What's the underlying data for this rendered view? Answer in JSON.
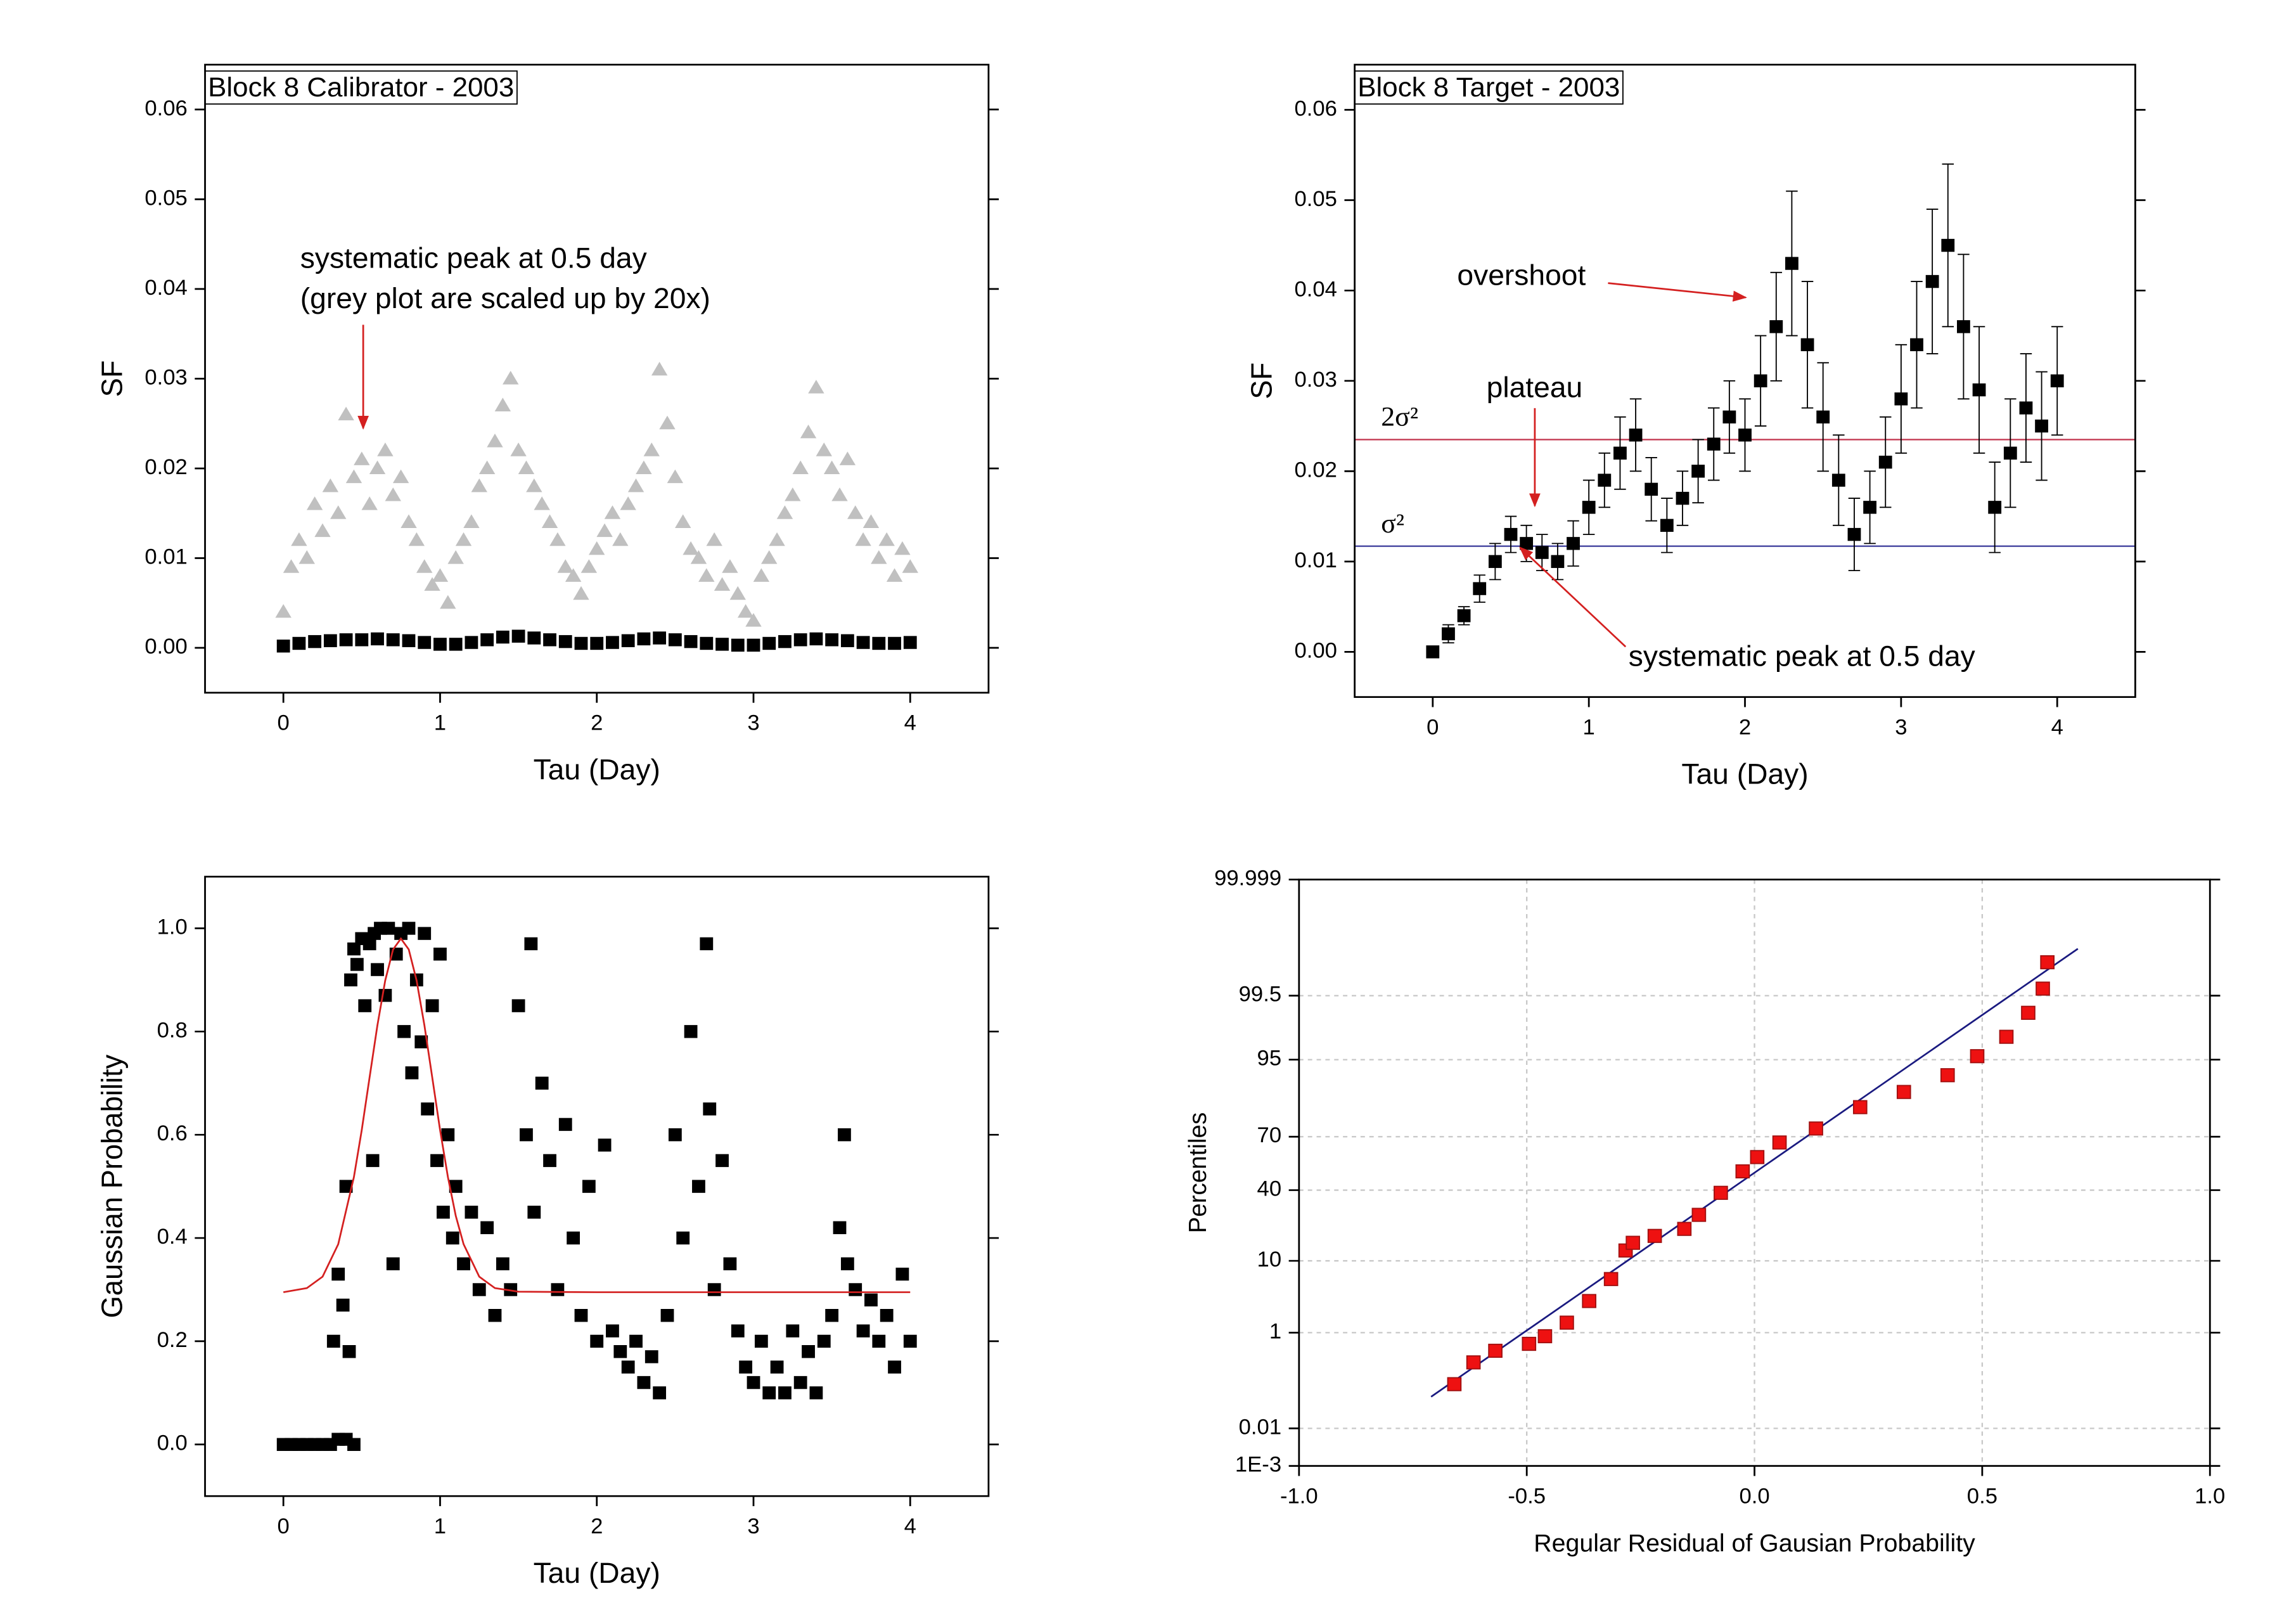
{
  "chart_data": [
    {
      "type": "scatter",
      "title": "Block 8 Calibrator - 2003",
      "x_label": "Tau (Day)",
      "y_label": "SF",
      "annotations": [
        "systematic peak at 0.5 day",
        "(grey plot are scaled up by 20x)"
      ],
      "xlim": [
        -0.5,
        4.5
      ],
      "ylim": [
        -0.005,
        0.065
      ],
      "xticks": [
        0,
        1,
        2,
        3,
        4
      ],
      "yticks": [
        {
          "value": 0,
          "label": "0.00"
        },
        {
          "value": 0.01,
          "label": "0.01"
        },
        {
          "value": 0.02,
          "label": "0.02"
        },
        {
          "value": 0.03,
          "label": "0.03"
        },
        {
          "value": 0.04,
          "label": "0.04"
        },
        {
          "value": 0.05,
          "label": "0.05"
        },
        {
          "value": 0.06,
          "label": "0.06"
        }
      ],
      "grid": false,
      "series": [
        {
          "style": "triangle",
          "color": "#c0c0c0",
          "x": [
            0,
            0.05,
            0.1,
            0.15,
            0.2,
            0.25,
            0.3,
            0.35,
            0.4,
            0.45,
            0.5,
            0.55,
            0.6,
            0.65,
            0.7,
            0.75,
            0.8,
            0.85,
            0.9,
            0.95,
            1,
            1.05,
            1.1,
            1.15,
            1.2,
            1.25,
            1.3,
            1.35,
            1.4,
            1.45,
            1.5,
            1.55,
            1.6,
            1.65,
            1.7,
            1.75,
            1.8,
            1.85,
            1.9,
            1.95,
            2,
            2.05,
            2.1,
            2.15,
            2.2,
            2.25,
            2.3,
            2.35,
            2.4,
            2.45,
            2.5,
            2.55,
            2.6,
            2.65,
            2.7,
            2.75,
            2.8,
            2.85,
            2.9,
            2.95,
            3,
            3.05,
            3.1,
            3.15,
            3.2,
            3.25,
            3.3,
            3.35,
            3.4,
            3.45,
            3.5,
            3.55,
            3.6,
            3.65,
            3.7,
            3.75,
            3.8,
            3.85,
            3.9,
            3.95,
            4
          ],
          "values": [
            0.004,
            0.009,
            0.012,
            0.01,
            0.016,
            0.013,
            0.018,
            0.015,
            0.026,
            0.019,
            0.021,
            0.016,
            0.02,
            0.022,
            0.017,
            0.019,
            0.014,
            0.012,
            0.009,
            0.007,
            0.008,
            0.005,
            0.01,
            0.012,
            0.014,
            0.018,
            0.02,
            0.023,
            0.027,
            0.03,
            0.022,
            0.02,
            0.018,
            0.016,
            0.014,
            0.012,
            0.009,
            0.008,
            0.006,
            0.009,
            0.011,
            0.013,
            0.015,
            0.012,
            0.016,
            0.018,
            0.02,
            0.022,
            0.031,
            0.025,
            0.019,
            0.014,
            0.011,
            0.01,
            0.008,
            0.012,
            0.007,
            0.009,
            0.006,
            0.004,
            0.003,
            0.008,
            0.01,
            0.012,
            0.015,
            0.017,
            0.02,
            0.024,
            0.029,
            0.022,
            0.02,
            0.017,
            0.021,
            0.015,
            0.012,
            0.014,
            0.01,
            0.012,
            0.008,
            0.011,
            0.009
          ]
        },
        {
          "style": "square",
          "color": "#000000",
          "x": [
            0,
            0.1,
            0.2,
            0.3,
            0.4,
            0.5,
            0.6,
            0.7,
            0.8,
            0.9,
            1,
            1.1,
            1.2,
            1.3,
            1.4,
            1.5,
            1.6,
            1.7,
            1.8,
            1.9,
            2,
            2.1,
            2.2,
            2.3,
            2.4,
            2.5,
            2.6,
            2.7,
            2.8,
            2.9,
            3,
            3.1,
            3.2,
            3.3,
            3.4,
            3.5,
            3.6,
            3.7,
            3.8,
            3.9,
            4
          ],
          "values": [
            0.0002,
            0.0005,
            0.0007,
            0.0008,
            0.0009,
            0.0009,
            0.001,
            0.0009,
            0.0008,
            0.0006,
            0.0004,
            0.0004,
            0.0006,
            0.0009,
            0.0012,
            0.0013,
            0.0011,
            0.0009,
            0.0007,
            0.0005,
            0.0005,
            0.0006,
            0.0008,
            0.001,
            0.0011,
            0.0009,
            0.0007,
            0.0005,
            0.0004,
            0.0003,
            0.0003,
            0.0005,
            0.0007,
            0.0009,
            0.001,
            0.0009,
            0.0008,
            0.0006,
            0.0005,
            0.0005,
            0.0006
          ]
        }
      ]
    },
    {
      "type": "scatter",
      "title": "Block 8 Target - 2003",
      "x_label": "Tau (Day)",
      "y_label": "SF",
      "annotations": [
        "overshoot",
        "plateau",
        "systematic peak at 0.5 day"
      ],
      "xlim": [
        -0.5,
        4.5
      ],
      "ylim": [
        -0.005,
        0.065
      ],
      "xticks": [
        0,
        1,
        2,
        3,
        4
      ],
      "yticks": [
        {
          "value": 0,
          "label": "0.00"
        },
        {
          "value": 0.01,
          "label": "0.01"
        },
        {
          "value": 0.02,
          "label": "0.02"
        },
        {
          "value": 0.03,
          "label": "0.03"
        },
        {
          "value": 0.04,
          "label": "0.04"
        },
        {
          "value": 0.05,
          "label": "0.05"
        },
        {
          "value": 0.06,
          "label": "0.06"
        }
      ],
      "grid": false,
      "hlines": [
        {
          "label": "2σ²",
          "value": 0.0235,
          "color": "#c0304a"
        },
        {
          "label": "σ²",
          "value": 0.0117,
          "color": "#3a3a9a"
        }
      ],
      "series": [
        {
          "style": "square",
          "color": "#000000",
          "x": [
            0,
            0.1,
            0.2,
            0.3,
            0.4,
            0.5,
            0.6,
            0.7,
            0.8,
            0.9,
            1,
            1.1,
            1.2,
            1.3,
            1.4,
            1.5,
            1.6,
            1.7,
            1.8,
            1.9,
            2,
            2.1,
            2.2,
            2.3,
            2.4,
            2.5,
            2.6,
            2.7,
            2.8,
            2.9,
            3,
            3.1,
            3.2,
            3.3,
            3.4,
            3.5,
            3.6,
            3.7,
            3.8,
            3.9,
            4
          ],
          "values": [
            0.0,
            0.002,
            0.004,
            0.007,
            0.01,
            0.013,
            0.012,
            0.011,
            0.01,
            0.012,
            0.016,
            0.019,
            0.022,
            0.024,
            0.018,
            0.014,
            0.017,
            0.02,
            0.023,
            0.026,
            0.024,
            0.03,
            0.036,
            0.043,
            0.034,
            0.026,
            0.019,
            0.013,
            0.016,
            0.021,
            0.028,
            0.034,
            0.041,
            0.045,
            0.036,
            0.029,
            0.016,
            0.022,
            0.027,
            0.025,
            0.03
          ],
          "errors": [
            0.0005,
            0.001,
            0.001,
            0.0015,
            0.002,
            0.002,
            0.002,
            0.002,
            0.002,
            0.0025,
            0.003,
            0.003,
            0.004,
            0.004,
            0.0035,
            0.003,
            0.003,
            0.0035,
            0.004,
            0.004,
            0.004,
            0.005,
            0.006,
            0.008,
            0.007,
            0.006,
            0.005,
            0.004,
            0.004,
            0.005,
            0.006,
            0.007,
            0.008,
            0.009,
            0.008,
            0.007,
            0.005,
            0.006,
            0.006,
            0.006,
            0.006
          ]
        }
      ]
    },
    {
      "type": "scatter",
      "x_label": "Tau (Day)",
      "y_label": "Gaussian Probability",
      "xlim": [
        -0.5,
        4.5
      ],
      "ylim": [
        -0.1,
        1.1
      ],
      "xticks": [
        0,
        1,
        2,
        3,
        4
      ],
      "yticks": [
        {
          "value": 0,
          "label": "0.0"
        },
        {
          "value": 0.2,
          "label": "0.2"
        },
        {
          "value": 0.4,
          "label": "0.4"
        },
        {
          "value": 0.6,
          "label": "0.6"
        },
        {
          "value": 0.8,
          "label": "0.8"
        },
        {
          "value": 1,
          "label": "1.0"
        }
      ],
      "grid": false,
      "series": [
        {
          "style": "square",
          "color": "#000000",
          "x": [
            0,
            0.05,
            0.1,
            0.15,
            0.2,
            0.25,
            0.3,
            0.35,
            0.4,
            0.45,
            0.32,
            0.35,
            0.38,
            0.4,
            0.42,
            0.43,
            0.45,
            0.47,
            0.5,
            0.52,
            0.55,
            0.57,
            0.58,
            0.6,
            0.62,
            0.65,
            0.67,
            0.7,
            0.72,
            0.75,
            0.77,
            0.8,
            0.82,
            0.85,
            0.88,
            0.9,
            0.92,
            0.95,
            0.98,
            1.0,
            1.02,
            1.05,
            1.08,
            1.1,
            1.15,
            1.2,
            1.25,
            1.3,
            1.35,
            1.4,
            1.45,
            1.5,
            1.55,
            1.58,
            1.6,
            1.65,
            1.7,
            1.75,
            1.8,
            1.85,
            1.9,
            1.95,
            2.0,
            2.05,
            2.1,
            2.15,
            2.2,
            2.25,
            2.3,
            2.35,
            2.4,
            2.45,
            2.5,
            2.55,
            2.6,
            2.65,
            2.7,
            2.72,
            2.75,
            2.8,
            2.85,
            2.9,
            2.95,
            3.0,
            3.05,
            3.1,
            3.15,
            3.2,
            3.25,
            3.3,
            3.35,
            3.4,
            3.45,
            3.5,
            3.55,
            3.58,
            3.6,
            3.65,
            3.7,
            3.75,
            3.8,
            3.85,
            3.9,
            3.95,
            4.0
          ],
          "values": [
            0,
            0,
            0,
            0,
            0,
            0,
            0,
            0.01,
            0.01,
            0,
            0.2,
            0.33,
            0.27,
            0.5,
            0.18,
            0.9,
            0.96,
            0.93,
            0.98,
            0.85,
            0.97,
            0.55,
            0.99,
            0.92,
            1.0,
            0.87,
            1.0,
            0.35,
            0.95,
            0.99,
            0.8,
            1.0,
            0.72,
            0.9,
            0.78,
            0.99,
            0.65,
            0.85,
            0.55,
            0.95,
            0.45,
            0.6,
            0.4,
            0.5,
            0.35,
            0.45,
            0.3,
            0.42,
            0.25,
            0.35,
            0.3,
            0.85,
            0.6,
            0.97,
            0.45,
            0.7,
            0.55,
            0.3,
            0.62,
            0.4,
            0.25,
            0.5,
            0.2,
            0.58,
            0.22,
            0.18,
            0.15,
            0.2,
            0.12,
            0.17,
            0.1,
            0.25,
            0.6,
            0.4,
            0.8,
            0.5,
            0.97,
            0.65,
            0.3,
            0.55,
            0.35,
            0.22,
            0.15,
            0.12,
            0.2,
            0.1,
            0.15,
            0.1,
            0.22,
            0.12,
            0.18,
            0.1,
            0.2,
            0.25,
            0.42,
            0.6,
            0.35,
            0.3,
            0.22,
            0.28,
            0.2,
            0.25,
            0.15,
            0.33,
            0.2
          ]
        },
        {
          "style": "line",
          "color": "#d42020",
          "x": [
            0,
            0.15,
            0.25,
            0.35,
            0.45,
            0.5,
            0.55,
            0.6,
            0.65,
            0.7,
            0.75,
            0.8,
            0.85,
            0.9,
            0.95,
            1.0,
            1.05,
            1.1,
            1.15,
            1.25,
            1.35,
            1.5,
            2,
            3,
            4
          ],
          "values": [
            0.295,
            0.303,
            0.325,
            0.388,
            0.518,
            0.609,
            0.711,
            0.812,
            0.899,
            0.959,
            0.98,
            0.959,
            0.899,
            0.812,
            0.711,
            0.609,
            0.518,
            0.443,
            0.388,
            0.325,
            0.303,
            0.296,
            0.295,
            0.295,
            0.295
          ]
        }
      ]
    },
    {
      "type": "scatter",
      "x_label": "Regular Residual of Gausian Probability",
      "y_label": "Percentiles",
      "xlim": [
        -1,
        1
      ],
      "ylim": [
        0.001,
        99.999
      ],
      "yscale": "probit",
      "xticks": [
        {
          "value": -1,
          "label": "-1.0"
        },
        -0.5,
        {
          "value": 0,
          "label": "0.0"
        },
        0.5,
        {
          "value": 1,
          "label": "1.0"
        }
      ],
      "yticks": [
        {
          "value": 0.001,
          "label": "1E-3"
        },
        0.01,
        1,
        10,
        40,
        70,
        95,
        99.5,
        99.999
      ],
      "grid": true,
      "series": [
        {
          "style": "line",
          "color": "#1a1a80",
          "x": [
            -0.71,
            0.71
          ],
          "values": [
            0.056,
            99.944
          ]
        },
        {
          "style": "square",
          "color": "#ee1111",
          "x": [
            -0.659,
            -0.617,
            -0.569,
            -0.495,
            -0.46,
            -0.412,
            -0.363,
            -0.315,
            -0.283,
            -0.267,
            -0.219,
            -0.154,
            -0.122,
            -0.074,
            -0.026,
            0.006,
            0.055,
            0.135,
            0.232,
            0.328,
            0.424,
            0.489,
            0.553,
            0.601,
            0.633,
            0.643
          ],
          "values": [
            0.105,
            0.29,
            0.48,
            0.64,
            0.87,
            1.46,
            3.1,
            6.1,
            12.9,
            15.4,
            17.9,
            20.7,
            27,
            38.5,
            50.8,
            59,
            67,
            74,
            83,
            88,
            92.2,
            95.5,
            97.6,
            99.0,
            99.63,
            99.89
          ]
        }
      ]
    }
  ]
}
